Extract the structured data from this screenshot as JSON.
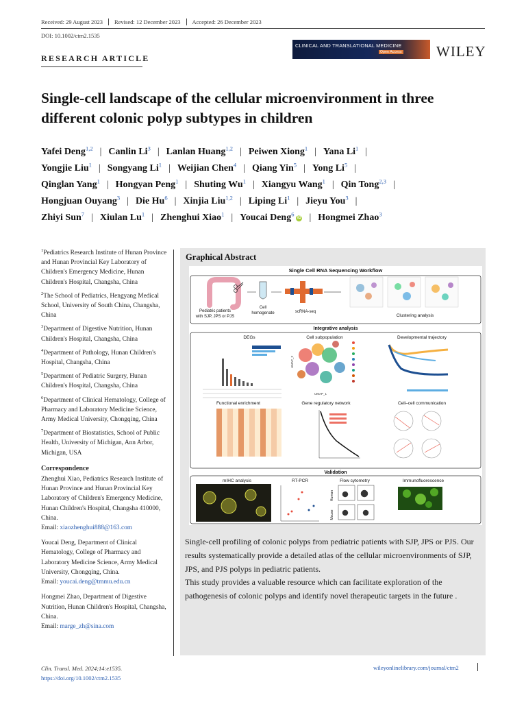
{
  "header": {
    "dates": [
      "Received: 29 August 2023",
      "Revised: 12 December 2023",
      "Accepted: 26 December 2023"
    ],
    "doi": "DOI: 10.1002/ctm2.1535",
    "journal_logo_text": "CLINICAL AND TRANSLATIONAL MEDICINE",
    "journal_logo_badge": "Open Access",
    "publisher": "WILEY",
    "section": "RESEARCH ARTICLE"
  },
  "title": "Single-cell landscape of the cellular microenvironment in three different colonic polyp subtypes in children",
  "author_lines": [
    [
      {
        "name": "Yafei Deng",
        "sup": "1,2"
      },
      {
        "name": "Canlin Li",
        "sup": "3"
      },
      {
        "name": "Lanlan Huang",
        "sup": "1,2"
      },
      {
        "name": "Peiwen Xiong",
        "sup": "1"
      },
      {
        "name": "Yana Li",
        "sup": "1"
      }
    ],
    [
      {
        "name": "Yongjie Liu",
        "sup": "1"
      },
      {
        "name": "Songyang Li",
        "sup": "1"
      },
      {
        "name": "Weijian Chen",
        "sup": "4"
      },
      {
        "name": "Qiang Yin",
        "sup": "5"
      },
      {
        "name": "Yong Li",
        "sup": "5"
      }
    ],
    [
      {
        "name": "Qinglan Yang",
        "sup": "1"
      },
      {
        "name": "Hongyan Peng",
        "sup": "1"
      },
      {
        "name": "Shuting Wu",
        "sup": "1"
      },
      {
        "name": "Xiangyu Wang",
        "sup": "1"
      },
      {
        "name": "Qin Tong",
        "sup": "2,3"
      }
    ],
    [
      {
        "name": "Hongjuan Ouyang",
        "sup": "3"
      },
      {
        "name": "Die Hu",
        "sup": "6"
      },
      {
        "name": "Xinjia Liu",
        "sup": "1,2"
      },
      {
        "name": "Liping Li",
        "sup": "1"
      },
      {
        "name": "Jieyu You",
        "sup": "3"
      }
    ],
    [
      {
        "name": "Zhiyi Sun",
        "sup": "7"
      },
      {
        "name": "Xiulan Lu",
        "sup": "1"
      },
      {
        "name": "Zhenghui Xiao",
        "sup": "1"
      },
      {
        "name": "Youcai Deng",
        "sup": "6",
        "orcid": true
      },
      {
        "name": "Hongmei Zhao",
        "sup": "3"
      }
    ]
  ],
  "affiliations": [
    {
      "n": "1",
      "text": "Pediatrics Research Institute of Hunan Province and Hunan Provincial Key Laboratory of Children's Emergency Medicine, Hunan Children's Hospital, Changsha, China"
    },
    {
      "n": "2",
      "text": "The School of Pediatrics, Hengyang Medical School, University of South China, Changsha, China"
    },
    {
      "n": "3",
      "text": "Department of Digestive Nutrition, Hunan Children's Hospital, Changsha, China"
    },
    {
      "n": "4",
      "text": "Department of Pathology, Hunan Children's Hospital, Changsha, China"
    },
    {
      "n": "5",
      "text": "Department of Pediatric Surgery, Hunan Children's Hospital, Changsha, China"
    },
    {
      "n": "6",
      "text": "Department of Clinical Hematology, College of Pharmacy and Laboratory Medicine Science, Army Medical University, Chongqing, China"
    },
    {
      "n": "7",
      "text": "Department of Biostatistics, School of Public Health, University of Michigan, Ann Arbor, Michigan, USA"
    }
  ],
  "correspondence": {
    "heading": "Correspondence",
    "entries": [
      {
        "text": "Zhenghui Xiao, Pediatrics Research Institute of Hunan Province and Hunan Provincial Key Laboratory of Children's Emergency Medicine, Hunan Children's Hospital, Changsha 410000, China.",
        "email_label": "Email: ",
        "email": "xiaozhenghui888@163.com"
      },
      {
        "text": "Youcai Deng, Department of Clinical Hematology, College of Pharmacy and Laboratory Medicine Science, Army Medical University, Chongqing, China.",
        "email_label": "Email: ",
        "email": "youcai.deng@tmmu.edu.cn"
      },
      {
        "text": "Hongmei Zhao, Department of Digestive Nutrition, Hunan Children's Hospital, Changsha, China.",
        "email_label": "Email: ",
        "email": "marge_zh@sina.com"
      }
    ]
  },
  "graphical_abstract": {
    "heading": "Graphical Abstract",
    "figure": {
      "workflow_title": "Single Cell RNA Sequencing Workflow",
      "step1": [
        "Pediatric patients",
        "with SJP, JPS or PJS"
      ],
      "step2": [
        "Cell",
        "homogenate"
      ],
      "step3": "scRNA-seq",
      "step4": "Clustering analysis",
      "integrative_title": "Integrative analysis",
      "panels": [
        "DEGs",
        "Cell subpopulation",
        "Developmental trajectory",
        "Functional enrichment",
        "Gene regulatory network",
        "Cell–cell communication"
      ],
      "validation_title": "Validation",
      "validation_panels": [
        "mIHC analysis",
        "RT-PCR",
        "Flow cytometry",
        "Immunofluorescence"
      ],
      "axis_labels": [
        "UMAP_1",
        "UMAP_2",
        "Human",
        "Mouse"
      ]
    },
    "caption": [
      "Single-cell profiling of colonic polyps from pediatric patients with SJP, JPS or PJS. Our results systematically provide a detailed atlas of the cellular microenvironments of SJP, JPS, and PJS polyps in pediatric patients.",
      "This study provides a valuable resource which can facilitate exploration of the pathogenesis of colonic polyps and identify novel therapeutic targets in the future ."
    ]
  },
  "footer": {
    "citation": "Clin. Transl. Med. 2024;14:e1535.",
    "doi_link": "https://doi.org/10.1002/ctm2.1535",
    "journal_url": "wileyonlinelibrary.com/journal/ctm2"
  },
  "colors": {
    "link": "#2a5db0",
    "panel_bg": "#e6e6e6",
    "orcid": "#a6ce39"
  }
}
